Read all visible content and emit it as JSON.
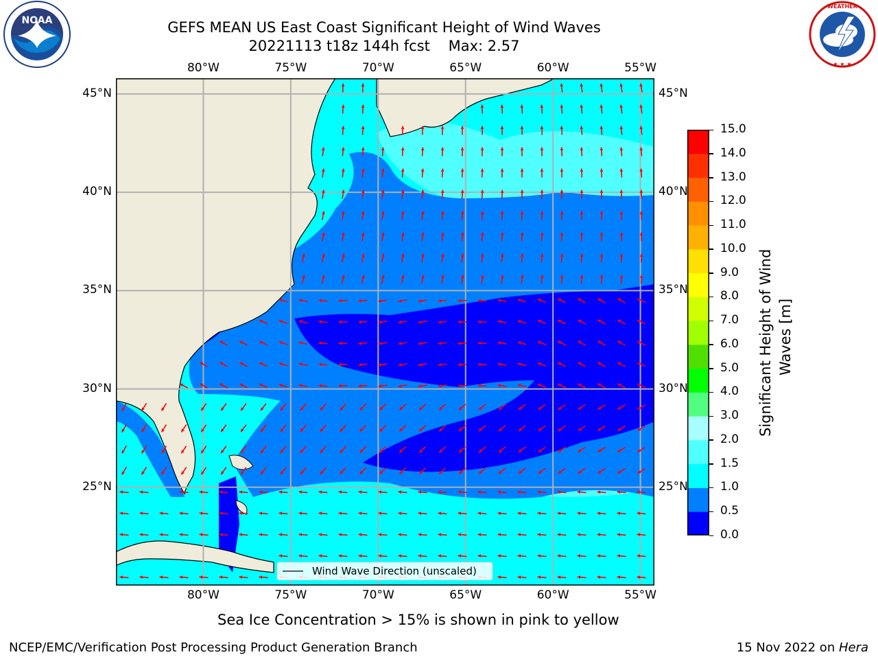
{
  "title": {
    "line1": "GEFS MEAN US East Coast Significant Height of Wind Waves",
    "line2": "20221113 t18z 144h fcst    Max: 2.57"
  },
  "logos": {
    "left": "NOAA",
    "right": "NATIONAL WEATHER SERVICE"
  },
  "map": {
    "lon_labels": [
      "80°W",
      "75°W",
      "70°W",
      "65°W",
      "60°W",
      "55°W"
    ],
    "lat_labels": [
      "45°N",
      "40°N",
      "35°N",
      "30°N",
      "25°N"
    ],
    "lon_range": [
      -85,
      -54.2
    ],
    "lat_range": [
      20,
      45.8
    ],
    "legend_label": "Wind Wave Direction (unscaled)",
    "land_color": "#efecdc",
    "arrow_color": "#ff0000",
    "grid": true
  },
  "colorbar": {
    "title_line1": "Significant Height of Wind",
    "title_line2": "Waves [m]",
    "ticks": [
      "15.0",
      "14.0",
      "13.0",
      "12.0",
      "11.0",
      "10.0",
      "9.0",
      "8.0",
      "7.0",
      "6.0",
      "5.0",
      "4.0",
      "3.0",
      "2.0",
      "1.5",
      "1.0",
      "0.5",
      "0.0"
    ],
    "colors_bottom_to_top": [
      "#0000ff",
      "#0080ff",
      "#00ffff",
      "#50ffff",
      "#a8ffff",
      "#50ff80",
      "#00ff00",
      "#50e000",
      "#a0ff00",
      "#d0ff00",
      "#ffff00",
      "#ffe000",
      "#ffb000",
      "#ff9000",
      "#ff6000",
      "#ff3000",
      "#ff0000"
    ]
  },
  "notes": {
    "sea_ice": "Sea Ice Concentration > 15% is shown in pink to yellow",
    "producer": "NCEP/EMC/Verification Post Processing Product Generation Branch",
    "date_text": "15 Nov 2022 on ",
    "machine": "Hera"
  }
}
